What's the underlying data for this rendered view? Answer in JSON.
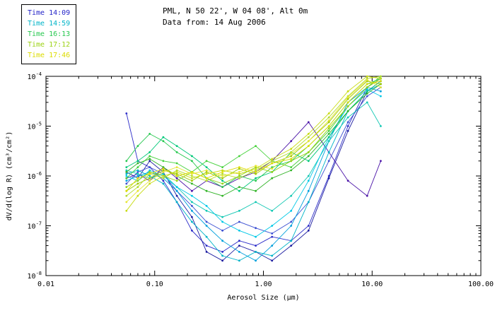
{
  "header": {
    "line1": "PML, N 50 22', W 04 08', Alt 0m",
    "line2": "Data from: 14 Aug 2006"
  },
  "legend": {
    "items": [
      {
        "label": "Time 14:09",
        "color": "#2424c8"
      },
      {
        "label": "Time 14:59",
        "color": "#00b4c8"
      },
      {
        "label": "Time 16:13",
        "color": "#28c850"
      },
      {
        "label": "Time 17:12",
        "color": "#9cd214"
      },
      {
        "label": "Time 17:46",
        "color": "#dcdc00"
      }
    ]
  },
  "chart_data": {
    "type": "line",
    "title": "PML, N 50 22', W 04 08', Alt 0m",
    "subtitle": "Data from: 14 Aug 2006",
    "xlabel": "Aerosol Size (µm)",
    "ylabel": "dV/d(log R) (cm³/cm²)",
    "xscale": "log",
    "yscale": "log",
    "xlim": [
      0.01,
      100
    ],
    "ylim": [
      1e-08,
      0.0001
    ],
    "x_tick_values": [
      0.01,
      0.1,
      1.0,
      10.0,
      100.0
    ],
    "x_ticks": [
      "0.01",
      "0.10",
      "1.00",
      "10.00",
      "100.00"
    ],
    "y_tick_exponents": [
      -8,
      -7,
      -6,
      -5,
      -4
    ],
    "y_ticks": [
      "10⁻⁸",
      "10⁻⁷",
      "10⁻⁶",
      "10⁻⁵",
      "10⁻⁴"
    ],
    "grid": false,
    "legend_position": "top-left-outside",
    "x": [
      0.055,
      0.07,
      0.09,
      0.12,
      0.16,
      0.22,
      0.3,
      0.42,
      0.6,
      0.85,
      1.2,
      1.8,
      2.6,
      4.0,
      6.0,
      9.0,
      12.0
    ],
    "series": [
      {
        "name": "Time 14:09",
        "color": "#2a2ac8",
        "values": [
          1.8e-05,
          2e-06,
          1.5e-06,
          8e-07,
          3e-07,
          8e-08,
          4e-08,
          3e-08,
          5e-08,
          4e-08,
          6e-08,
          5e-08,
          1e-07,
          1e-06,
          1e-05,
          6e-05,
          9e-05
        ]
      },
      {
        "name": "Time 14:09",
        "color": "#1c1ca0",
        "values": [
          1.2e-06,
          9e-07,
          2e-06,
          1.2e-06,
          4e-07,
          1.5e-07,
          3e-08,
          2e-08,
          4e-08,
          3e-08,
          2e-08,
          4e-08,
          8e-08,
          9e-07,
          8e-06,
          5e-05,
          8e-05
        ]
      },
      {
        "name": "Time 14:09",
        "color": "#4b14a8",
        "values": [
          9e-07,
          1.1e-06,
          8e-07,
          1.5e-06,
          9e-07,
          5e-07,
          8e-07,
          6e-07,
          9e-07,
          1.2e-06,
          2e-06,
          5e-06,
          1.2e-05,
          3e-06,
          8e-07,
          4e-07,
          2e-06
        ]
      },
      {
        "name": "Time 14:09",
        "color": "#3c50d2",
        "values": [
          7e-07,
          1.2e-06,
          1.5e-06,
          1.1e-06,
          5e-07,
          2.5e-07,
          1.2e-07,
          8e-08,
          1.2e-07,
          9e-08,
          7e-08,
          1.2e-07,
          3e-07,
          2e-06,
          1.2e-05,
          4e-05,
          6e-05
        ]
      },
      {
        "name": "Time 14:59",
        "color": "#00b4c8",
        "values": [
          1.1e-06,
          1.3e-06,
          1e-06,
          7e-07,
          3e-07,
          1.2e-07,
          6e-08,
          2.5e-08,
          2e-08,
          3e-08,
          2.5e-08,
          5e-08,
          3e-07,
          3e-06,
          2e-05,
          5e-05,
          7e-05
        ]
      },
      {
        "name": "Time 14:59",
        "color": "#00a0dc",
        "values": [
          8e-07,
          1e-06,
          1.2e-06,
          9e-07,
          5e-07,
          2e-07,
          1e-07,
          5e-08,
          3e-08,
          2e-08,
          4e-08,
          1e-07,
          5e-07,
          5e-06,
          3e-05,
          6e-05,
          5e-05
        ]
      },
      {
        "name": "Time 14:59",
        "color": "#14c8b4",
        "values": [
          1.3e-06,
          1.1e-06,
          9e-07,
          1.1e-06,
          6e-07,
          3e-07,
          2e-07,
          1.5e-07,
          2e-07,
          3e-07,
          2e-07,
          4e-07,
          1e-06,
          5e-06,
          1.5e-05,
          3e-05,
          1e-05
        ]
      },
      {
        "name": "Time 14:59",
        "color": "#00c8e6",
        "values": [
          1e-06,
          8e-07,
          1.3e-06,
          1e-06,
          6e-07,
          4e-07,
          2.5e-07,
          1.2e-07,
          8e-08,
          6e-08,
          1e-07,
          2e-07,
          8e-07,
          6e-06,
          2.5e-05,
          5.5e-05,
          4e-05
        ]
      },
      {
        "name": "Time 16:13",
        "color": "#28c850",
        "values": [
          2e-06,
          4e-06,
          7e-06,
          5e-06,
          3e-06,
          2e-06,
          9e-07,
          6e-07,
          1e-06,
          8e-07,
          1.5e-06,
          2e-06,
          4e-06,
          1e-05,
          3e-05,
          7e-05,
          9e-05
        ]
      },
      {
        "name": "Time 16:13",
        "color": "#00c878",
        "values": [
          1.5e-06,
          2e-06,
          3e-06,
          6e-06,
          4e-06,
          2.5e-06,
          1.5e-06,
          8e-07,
          5e-07,
          9e-07,
          1.2e-06,
          3e-06,
          2e-06,
          6e-06,
          2e-05,
          5e-05,
          8e-05
        ]
      },
      {
        "name": "Time 16:13",
        "color": "#46d23c",
        "values": [
          9e-07,
          1.5e-06,
          2.5e-06,
          2e-06,
          1.8e-06,
          1.2e-06,
          2e-06,
          1.5e-06,
          2.5e-06,
          4e-06,
          2e-06,
          1.5e-06,
          3e-06,
          8e-06,
          2.5e-05,
          6e-05,
          0.0001
        ]
      },
      {
        "name": "Time 16:13",
        "color": "#32b428",
        "values": [
          1.2e-06,
          1.8e-06,
          2.2e-06,
          1.5e-06,
          1e-06,
          7e-07,
          5e-07,
          4e-07,
          6e-07,
          5e-07,
          9e-07,
          1.3e-06,
          2.5e-06,
          7e-06,
          2e-05,
          4.5e-05,
          7e-05
        ]
      },
      {
        "name": "Time 17:12",
        "color": "#96d214",
        "values": [
          6e-07,
          8e-07,
          1.2e-06,
          1e-06,
          8e-07,
          1.2e-06,
          9e-07,
          7e-07,
          1e-06,
          1.5e-06,
          1.2e-06,
          2e-06,
          3e-06,
          9e-06,
          2.5e-05,
          6e-05,
          9e-05
        ]
      },
      {
        "name": "Time 17:12",
        "color": "#a0c800",
        "values": [
          5e-07,
          7e-07,
          9e-07,
          1.3e-06,
          1.1e-06,
          8e-07,
          1.2e-06,
          9e-07,
          1.4e-06,
          1.1e-06,
          1.8e-06,
          2.5e-06,
          5e-06,
          1.2e-05,
          3.5e-05,
          8e-05,
          7e-05
        ]
      },
      {
        "name": "Time 17:12",
        "color": "#b4dc28",
        "values": [
          4e-07,
          6e-07,
          1.1e-06,
          9e-07,
          1.3e-06,
          1e-06,
          8e-07,
          1.1e-06,
          9e-07,
          1.3e-06,
          2e-06,
          3e-06,
          6e-06,
          1.5e-05,
          4e-05,
          9e-05,
          0.0001
        ]
      },
      {
        "name": "Time 17:46",
        "color": "#dcdc00",
        "values": [
          5e-07,
          9e-07,
          1.1e-06,
          1.4e-06,
          1e-06,
          1.2e-06,
          9e-07,
          1.2e-06,
          1.5e-06,
          1.2e-06,
          1.8e-06,
          2.2e-06,
          4e-06,
          1e-05,
          3e-05,
          7e-05,
          8e-05
        ]
      },
      {
        "name": "Time 17:46",
        "color": "#e6e632",
        "values": [
          3e-07,
          5e-07,
          8e-07,
          1.2e-06,
          1.5e-06,
          1.1e-06,
          1.3e-06,
          1e-06,
          1.2e-06,
          1.6e-06,
          1.4e-06,
          2.8e-06,
          5e-06,
          1.3e-05,
          3.8e-05,
          8.5e-05,
          6e-05
        ]
      },
      {
        "name": "Time 17:46",
        "color": "#c8dc14",
        "values": [
          2e-07,
          4e-07,
          7e-07,
          1e-06,
          1.2e-06,
          9e-07,
          1.1e-06,
          1.3e-06,
          1.1e-06,
          1.4e-06,
          2.2e-06,
          3.5e-06,
          7e-06,
          1.8e-05,
          5e-05,
          0.0001,
          9e-05
        ]
      }
    ]
  }
}
